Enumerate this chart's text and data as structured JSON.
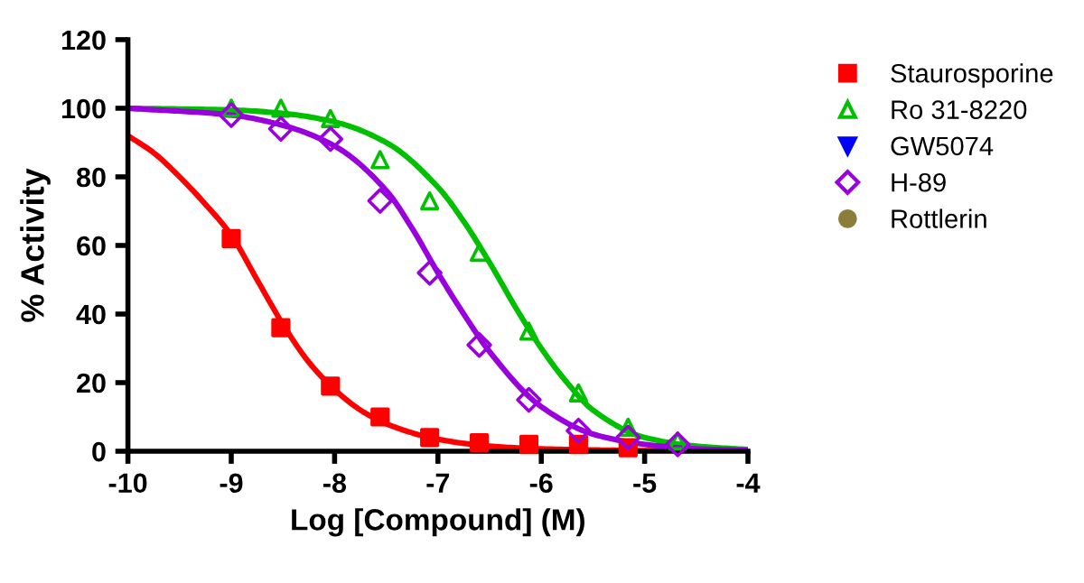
{
  "chart_data": {
    "type": "scatter",
    "xlabel": "Log [Compound] (M)",
    "ylabel": "% Activity",
    "x": [
      -9,
      -8.52,
      -8.04,
      -7.56,
      -7.08,
      -6.6,
      -6.12,
      -5.64,
      -5.16,
      -4.68
    ],
    "xlim": [
      -10,
      -4
    ],
    "xticks": [
      -10,
      -9,
      -8,
      -7,
      -6,
      -5,
      -4
    ],
    "ylim": [
      0,
      120
    ],
    "yticks": [
      0,
      20,
      40,
      60,
      80,
      100,
      120
    ],
    "grid": false,
    "legend": "right",
    "series": [
      {
        "name": "Staurosporine",
        "color": "#ff0000",
        "marker": "square",
        "values": [
          62,
          36,
          19,
          10,
          4,
          2.5,
          2,
          2,
          1,
          null
        ]
      },
      {
        "name": "Ro 31-8220",
        "color": "#00c000",
        "marker": "triangle",
        "values": [
          100,
          100,
          97,
          85,
          73,
          58,
          35,
          17,
          7,
          3
        ]
      },
      {
        "name": "GW5074",
        "color": "#0000ff",
        "marker": "triangle_down",
        "values": [
          null,
          null,
          null,
          null,
          null,
          null,
          null,
          null,
          null,
          null
        ]
      },
      {
        "name": "H-89",
        "color": "#9900dd",
        "marker": "diamond",
        "values": [
          98,
          94,
          91,
          73,
          52,
          31,
          15,
          6,
          4,
          2
        ]
      },
      {
        "name": "Rottlerin",
        "color": "#8b7d3a",
        "marker": "circle",
        "values": [
          null,
          null,
          null,
          null,
          null,
          null,
          null,
          null,
          null,
          null
        ]
      },
      {
        "type": "line",
        "color": "#ff0000",
        "x": [
          -10,
          -9.75,
          -9.5,
          -9.25,
          -9,
          -8.75,
          -8.5,
          -8.25,
          -8,
          -7.75,
          -7.5,
          -7,
          -6.5,
          -6,
          -5,
          -4
        ],
        "values": [
          92,
          87,
          80,
          72,
          63,
          50,
          37,
          26,
          18,
          12,
          8,
          3.5,
          1.5,
          0.7,
          0.2,
          0
        ]
      },
      {
        "type": "line",
        "color": "#00c000",
        "x": [
          -10,
          -9,
          -8.5,
          -8,
          -7.5,
          -7,
          -6.75,
          -6.5,
          -6.25,
          -6,
          -5.75,
          -5.5,
          -5,
          -4.5,
          -4
        ],
        "values": [
          100,
          99.5,
          98.5,
          96,
          90,
          77,
          67,
          55,
          42,
          30,
          20,
          12,
          4,
          1.5,
          0.5
        ]
      },
      {
        "type": "line",
        "color": "#9900dd",
        "x": [
          -10,
          -9,
          -8.5,
          -8,
          -7.5,
          -7.25,
          -7,
          -6.75,
          -6.5,
          -6,
          -5.5,
          -5,
          -4.5,
          -4
        ],
        "values": [
          100,
          98,
          95,
          89,
          76,
          65,
          52,
          40,
          29,
          13,
          5,
          2,
          0.7,
          0.3
        ]
      }
    ]
  }
}
